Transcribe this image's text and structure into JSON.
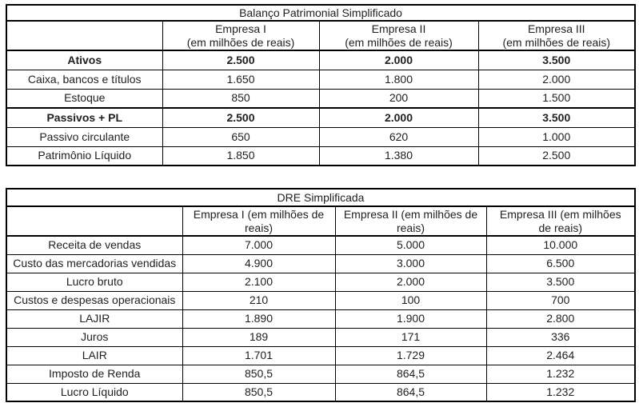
{
  "page": {
    "background": "#ffffff",
    "text_color": "#1f1f1f",
    "border_color": "#000000"
  },
  "tables": [
    {
      "title": "Balanço Patrimonial Simplificado",
      "headers": [
        "",
        "Empresa I\n(em milhões de reais)",
        "Empresa II\n(em milhões de reais)",
        "Empresa III\n(em milhões de reais)"
      ],
      "rows": [
        {
          "label": "Ativos",
          "values": [
            "2.500",
            "2.000",
            "3.500"
          ],
          "bold": true
        },
        {
          "label": "Caixa, bancos e títulos",
          "values": [
            "1.650",
            "1.800",
            "2.000"
          ],
          "bold": false
        },
        {
          "label": "Estoque",
          "values": [
            "850",
            "200",
            "1.500"
          ],
          "bold": false
        },
        {
          "label": "Passivos + PL",
          "values": [
            "2.500",
            "2.000",
            "3.500"
          ],
          "bold": true
        },
        {
          "label": "Passivo circulante",
          "values": [
            "650",
            "620",
            "1.000"
          ],
          "bold": false
        },
        {
          "label": "Patrimônio Líquido",
          "values": [
            "1.850",
            "1.380",
            "2.500"
          ],
          "bold": false
        }
      ]
    },
    {
      "title": "DRE Simplificada",
      "headers": [
        "",
        "Empresa I (em milhões de\nreais)",
        "Empresa II (em milhões de\nreais)",
        "Empresa III (em milhões\nde reais)"
      ],
      "rows": [
        {
          "label": "Receita de vendas",
          "values": [
            "7.000",
            "5.000",
            "10.000"
          ],
          "bold": false
        },
        {
          "label": "Custo das mercadorias vendidas",
          "values": [
            "4.900",
            "3.000",
            "6.500"
          ],
          "bold": false
        },
        {
          "label": "Lucro bruto",
          "values": [
            "2.100",
            "2.000",
            "3.500"
          ],
          "bold": false
        },
        {
          "label": "Custos e despesas operacionais",
          "values": [
            "210",
            "100",
            "700"
          ],
          "bold": false
        },
        {
          "label": "LAJIR",
          "values": [
            "1.890",
            "1.900",
            "2.800"
          ],
          "bold": false
        },
        {
          "label": "Juros",
          "values": [
            "189",
            "171",
            "336"
          ],
          "bold": false
        },
        {
          "label": "LAIR",
          "values": [
            "1.701",
            "1.729",
            "2.464"
          ],
          "bold": false
        },
        {
          "label": "Imposto de Renda",
          "values": [
            "850,5",
            "864,5",
            "1.232"
          ],
          "bold": false
        },
        {
          "label": "Lucro Líquido",
          "values": [
            "850,5",
            "864,5",
            "1.232"
          ],
          "bold": false
        }
      ]
    }
  ]
}
